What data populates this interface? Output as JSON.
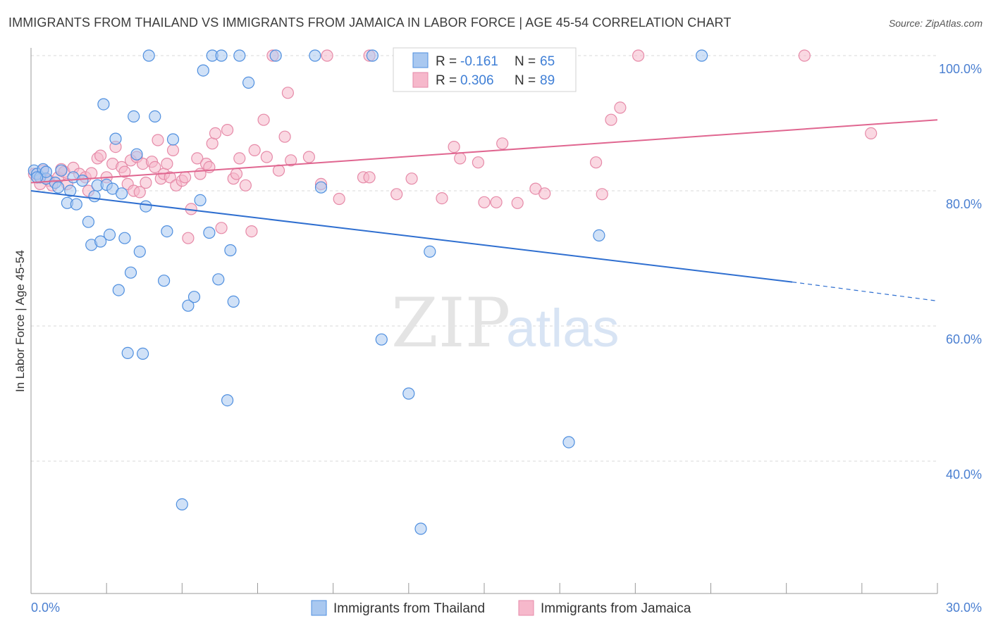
{
  "title": "IMMIGRANTS FROM THAILAND VS IMMIGRANTS FROM JAMAICA IN LABOR FORCE | AGE 45-54 CORRELATION CHART",
  "source": "Source: ZipAtlas.com",
  "watermark": {
    "zip": "ZIP",
    "atlas": "atlas"
  },
  "colors": {
    "thailand_fill": "#a9c8f0",
    "thailand_stroke": "#4f8fdf",
    "thailand_line": "#2f6fd0",
    "jamaica_fill": "#f6b8cb",
    "jamaica_stroke": "#e68aa8",
    "jamaica_line": "#e06690",
    "axis_text": "#4a7fd1",
    "grid": "#d8d8d8"
  },
  "legend": {
    "rows": [
      {
        "r_label": "R =",
        "r_value": "-0.161",
        "n_label": "N =",
        "n_value": "65"
      },
      {
        "r_label": "R =",
        "r_value": "0.306",
        "n_label": "N =",
        "n_value": "89"
      }
    ]
  },
  "chart_data": {
    "type": "scatter",
    "xlabel": "",
    "ylabel": "In Labor Force | Age 45-54",
    "xlim": [
      0,
      30
    ],
    "ylim": [
      22,
      102
    ],
    "x_tick_labels": [
      {
        "value": 0,
        "label": "0.0%"
      },
      {
        "value": 30,
        "label": "30.0%"
      }
    ],
    "y_tick_labels": [
      {
        "value": 100,
        "label": "100.0%"
      },
      {
        "value": 80,
        "label": "80.0%"
      },
      {
        "value": 60,
        "label": "60.0%"
      },
      {
        "value": 40,
        "label": "40.0%"
      }
    ],
    "grid": true,
    "series": [
      {
        "name": "Immigrants from Thailand",
        "trend": {
          "x0": 0,
          "y0": 80.0,
          "x1": 25.2,
          "y1": 66.5,
          "dash_to_x": 30,
          "dash_to_y": 63.7
        },
        "points": [
          [
            0.1,
            83.0
          ],
          [
            0.2,
            82.5
          ],
          [
            0.3,
            82.0
          ],
          [
            0.4,
            83.2
          ],
          [
            0.5,
            81.8
          ],
          [
            0.5,
            82.8
          ],
          [
            0.8,
            81.2
          ],
          [
            0.9,
            80.5
          ],
          [
            1.0,
            83.0
          ],
          [
            1.2,
            78.2
          ],
          [
            1.3,
            80.0
          ],
          [
            1.4,
            82.0
          ],
          [
            1.5,
            78.0
          ],
          [
            1.7,
            81.5
          ],
          [
            1.9,
            75.4
          ],
          [
            2.0,
            72.0
          ],
          [
            2.1,
            79.2
          ],
          [
            2.2,
            80.8
          ],
          [
            2.3,
            72.5
          ],
          [
            2.4,
            92.8
          ],
          [
            2.5,
            80.9
          ],
          [
            2.6,
            73.5
          ],
          [
            2.7,
            80.3
          ],
          [
            2.8,
            87.7
          ],
          [
            2.9,
            65.3
          ],
          [
            3.0,
            79.6
          ],
          [
            3.1,
            73.0
          ],
          [
            3.2,
            56.0
          ],
          [
            3.3,
            67.9
          ],
          [
            3.4,
            91.0
          ],
          [
            3.5,
            85.4
          ],
          [
            3.6,
            71.0
          ],
          [
            3.7,
            55.9
          ],
          [
            3.8,
            77.7
          ],
          [
            3.9,
            100.0
          ],
          [
            4.1,
            91.0
          ],
          [
            4.4,
            66.7
          ],
          [
            4.5,
            74.0
          ],
          [
            4.7,
            87.6
          ],
          [
            5.0,
            33.6
          ],
          [
            5.2,
            63.0
          ],
          [
            5.4,
            64.3
          ],
          [
            5.6,
            78.6
          ],
          [
            5.7,
            97.8
          ],
          [
            5.9,
            73.8
          ],
          [
            6.0,
            100.0
          ],
          [
            6.2,
            66.9
          ],
          [
            6.3,
            100.0
          ],
          [
            6.5,
            49.0
          ],
          [
            6.6,
            71.2
          ],
          [
            6.7,
            63.6
          ],
          [
            6.9,
            100.0
          ],
          [
            7.2,
            96.0
          ],
          [
            8.1,
            100.0
          ],
          [
            9.4,
            100.0
          ],
          [
            9.6,
            80.5
          ],
          [
            11.3,
            100.0
          ],
          [
            11.6,
            58.0
          ],
          [
            12.5,
            50.0
          ],
          [
            12.9,
            30.0
          ],
          [
            13.2,
            71.0
          ],
          [
            17.8,
            42.8
          ],
          [
            18.8,
            73.4
          ],
          [
            22.2,
            100.0
          ],
          [
            0.2,
            82.0
          ]
        ]
      },
      {
        "name": "Immigrants from Jamaica",
        "trend": {
          "x0": 0,
          "y0": 81.2,
          "x1": 30,
          "y1": 90.5
        },
        "points": [
          [
            0.1,
            82.5
          ],
          [
            0.3,
            81.0
          ],
          [
            0.4,
            83.0
          ],
          [
            0.6,
            81.5
          ],
          [
            0.7,
            80.8
          ],
          [
            0.9,
            82.0
          ],
          [
            1.0,
            83.2
          ],
          [
            1.1,
            82.8
          ],
          [
            1.2,
            81.0
          ],
          [
            1.4,
            83.4
          ],
          [
            1.6,
            82.5
          ],
          [
            1.8,
            82.0
          ],
          [
            1.9,
            80.0
          ],
          [
            2.0,
            82.6
          ],
          [
            2.2,
            84.8
          ],
          [
            2.3,
            85.2
          ],
          [
            2.5,
            82.0
          ],
          [
            2.7,
            84.0
          ],
          [
            2.8,
            86.5
          ],
          [
            3.0,
            83.5
          ],
          [
            3.1,
            82.8
          ],
          [
            3.2,
            81.0
          ],
          [
            3.3,
            84.5
          ],
          [
            3.4,
            80.0
          ],
          [
            3.5,
            85.0
          ],
          [
            3.6,
            79.8
          ],
          [
            3.7,
            84.0
          ],
          [
            3.8,
            81.2
          ],
          [
            4.0,
            84.3
          ],
          [
            4.1,
            83.5
          ],
          [
            4.2,
            87.5
          ],
          [
            4.3,
            81.8
          ],
          [
            4.4,
            82.5
          ],
          [
            4.5,
            84.0
          ],
          [
            4.6,
            82.0
          ],
          [
            4.7,
            86.0
          ],
          [
            4.8,
            80.8
          ],
          [
            5.0,
            81.5
          ],
          [
            5.1,
            82.0
          ],
          [
            5.2,
            73.0
          ],
          [
            5.3,
            77.3
          ],
          [
            5.5,
            84.8
          ],
          [
            5.6,
            82.5
          ],
          [
            5.8,
            84.0
          ],
          [
            5.9,
            83.5
          ],
          [
            6.0,
            87.0
          ],
          [
            6.1,
            88.5
          ],
          [
            6.3,
            74.5
          ],
          [
            6.5,
            89.0
          ],
          [
            6.7,
            81.8
          ],
          [
            6.8,
            82.5
          ],
          [
            6.9,
            84.8
          ],
          [
            7.1,
            80.8
          ],
          [
            7.3,
            74.0
          ],
          [
            7.4,
            86.0
          ],
          [
            7.7,
            90.5
          ],
          [
            7.8,
            85.0
          ],
          [
            8.2,
            83.0
          ],
          [
            8.4,
            88.0
          ],
          [
            8.6,
            84.5
          ],
          [
            8.5,
            94.5
          ],
          [
            9.2,
            85.0
          ],
          [
            9.6,
            81.0
          ],
          [
            10.2,
            78.8
          ],
          [
            11.0,
            82.0
          ],
          [
            11.2,
            82.0
          ],
          [
            12.1,
            79.5
          ],
          [
            12.6,
            81.8
          ],
          [
            13.6,
            78.9
          ],
          [
            14.0,
            86.5
          ],
          [
            14.2,
            84.8
          ],
          [
            14.8,
            84.2
          ],
          [
            15.0,
            78.3
          ],
          [
            15.4,
            78.3
          ],
          [
            15.6,
            87.0
          ],
          [
            16.1,
            78.2
          ],
          [
            16.7,
            80.3
          ],
          [
            17.0,
            79.6
          ],
          [
            18.7,
            84.2
          ],
          [
            18.9,
            79.5
          ],
          [
            19.2,
            90.5
          ],
          [
            19.5,
            92.3
          ],
          [
            8.0,
            100.0
          ],
          [
            9.8,
            100.0
          ],
          [
            11.2,
            100.0
          ],
          [
            20.1,
            100.0
          ],
          [
            25.6,
            100.0
          ],
          [
            27.8,
            88.5
          ],
          [
            0.2,
            82.0
          ]
        ]
      }
    ]
  },
  "bottom_legend": [
    {
      "label": "Immigrants from Thailand"
    },
    {
      "label": "Immigrants from Jamaica"
    }
  ]
}
